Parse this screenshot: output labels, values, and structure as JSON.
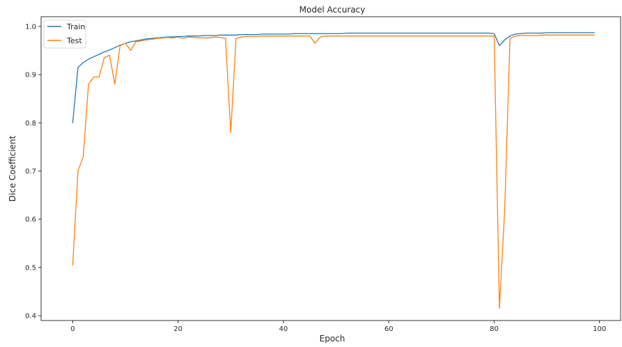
{
  "chart_data": {
    "type": "line",
    "title": "Model Accuracy",
    "xlabel": "Epoch",
    "ylabel": "Dice Coefficient",
    "xlim": [
      -6,
      104
    ],
    "ylim": [
      0.39,
      1.02
    ],
    "xticks": [
      0,
      20,
      40,
      60,
      80,
      100
    ],
    "yticks": [
      0.4,
      0.5,
      0.6,
      0.7,
      0.8,
      0.9,
      1.0
    ],
    "ytick_labels": [
      "0.4",
      "0.5",
      "0.6",
      "0.7",
      "0.8",
      "0.9",
      "1.0"
    ],
    "grid": false,
    "legend_position": "top-left",
    "series": [
      {
        "name": "Train",
        "color": "#1f77b4",
        "x": [
          0,
          1,
          2,
          3,
          4,
          5,
          6,
          7,
          8,
          9,
          10,
          11,
          12,
          13,
          14,
          15,
          16,
          17,
          18,
          19,
          20,
          21,
          22,
          23,
          24,
          25,
          26,
          27,
          28,
          29,
          30,
          31,
          32,
          33,
          34,
          35,
          36,
          37,
          38,
          39,
          40,
          41,
          42,
          43,
          44,
          45,
          46,
          47,
          48,
          49,
          50,
          51,
          52,
          53,
          54,
          55,
          56,
          57,
          58,
          59,
          60,
          61,
          62,
          63,
          64,
          65,
          66,
          67,
          68,
          69,
          70,
          71,
          72,
          73,
          74,
          75,
          76,
          77,
          78,
          79,
          80,
          81,
          82,
          83,
          84,
          85,
          86,
          87,
          88,
          89,
          90,
          91,
          92,
          93,
          94,
          95,
          96,
          97,
          98,
          99
        ],
        "values": [
          0.8,
          0.915,
          0.925,
          0.932,
          0.937,
          0.942,
          0.947,
          0.951,
          0.956,
          0.961,
          0.965,
          0.968,
          0.97,
          0.972,
          0.974,
          0.975,
          0.976,
          0.977,
          0.978,
          0.978,
          0.979,
          0.979,
          0.98,
          0.98,
          0.98,
          0.981,
          0.981,
          0.981,
          0.982,
          0.982,
          0.982,
          0.982,
          0.983,
          0.983,
          0.983,
          0.983,
          0.984,
          0.984,
          0.984,
          0.984,
          0.984,
          0.984,
          0.985,
          0.985,
          0.985,
          0.985,
          0.985,
          0.985,
          0.985,
          0.985,
          0.985,
          0.985,
          0.986,
          0.986,
          0.986,
          0.986,
          0.986,
          0.986,
          0.986,
          0.986,
          0.986,
          0.986,
          0.986,
          0.986,
          0.986,
          0.986,
          0.986,
          0.986,
          0.986,
          0.986,
          0.986,
          0.986,
          0.986,
          0.986,
          0.986,
          0.986,
          0.986,
          0.986,
          0.986,
          0.986,
          0.985,
          0.96,
          0.972,
          0.98,
          0.984,
          0.985,
          0.986,
          0.986,
          0.986,
          0.986,
          0.987,
          0.987,
          0.987,
          0.987,
          0.987,
          0.987,
          0.987,
          0.987,
          0.987,
          0.987
        ]
      },
      {
        "name": "Test",
        "color": "#ff7f0e",
        "x": [
          0,
          1,
          2,
          3,
          4,
          5,
          6,
          7,
          8,
          9,
          10,
          11,
          12,
          13,
          14,
          15,
          16,
          17,
          18,
          19,
          20,
          21,
          22,
          23,
          24,
          25,
          26,
          27,
          28,
          29,
          30,
          31,
          32,
          33,
          34,
          35,
          36,
          37,
          38,
          39,
          40,
          41,
          42,
          43,
          44,
          45,
          46,
          47,
          48,
          49,
          50,
          51,
          52,
          53,
          54,
          55,
          56,
          57,
          58,
          59,
          60,
          61,
          62,
          63,
          64,
          65,
          66,
          67,
          68,
          69,
          70,
          71,
          72,
          73,
          74,
          75,
          76,
          77,
          78,
          79,
          80,
          81,
          82,
          83,
          84,
          85,
          86,
          87,
          88,
          89,
          90,
          91,
          92,
          93,
          94,
          95,
          96,
          97,
          98,
          99
        ],
        "values": [
          0.505,
          0.7,
          0.73,
          0.88,
          0.895,
          0.895,
          0.935,
          0.94,
          0.88,
          0.96,
          0.965,
          0.95,
          0.968,
          0.97,
          0.972,
          0.973,
          0.975,
          0.976,
          0.977,
          0.976,
          0.978,
          0.975,
          0.978,
          0.977,
          0.976,
          0.976,
          0.976,
          0.978,
          0.977,
          0.975,
          0.78,
          0.975,
          0.978,
          0.979,
          0.979,
          0.979,
          0.98,
          0.98,
          0.98,
          0.98,
          0.98,
          0.98,
          0.98,
          0.98,
          0.98,
          0.98,
          0.965,
          0.978,
          0.98,
          0.98,
          0.98,
          0.98,
          0.98,
          0.98,
          0.98,
          0.98,
          0.98,
          0.98,
          0.98,
          0.98,
          0.98,
          0.98,
          0.98,
          0.98,
          0.98,
          0.98,
          0.98,
          0.98,
          0.98,
          0.98,
          0.98,
          0.98,
          0.98,
          0.98,
          0.98,
          0.98,
          0.98,
          0.98,
          0.98,
          0.98,
          0.98,
          0.415,
          0.62,
          0.975,
          0.98,
          0.981,
          0.981,
          0.981,
          0.981,
          0.982,
          0.982,
          0.982,
          0.982,
          0.982,
          0.982,
          0.982,
          0.982,
          0.982,
          0.982,
          0.982
        ]
      }
    ]
  }
}
